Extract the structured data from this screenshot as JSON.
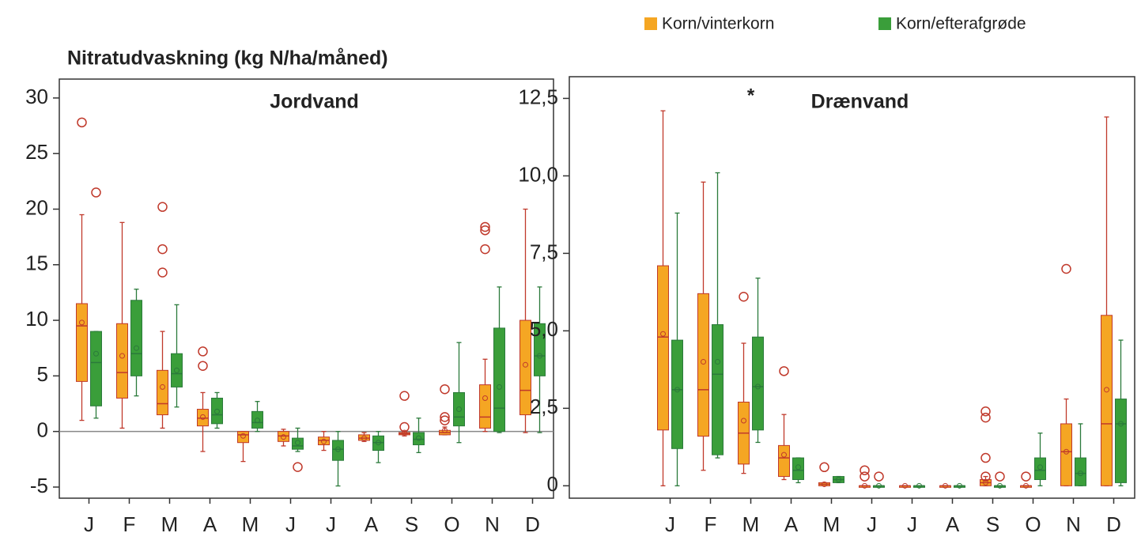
{
  "chart_data": [
    {
      "type": "box",
      "ylabel": "Nitratudvaskning (kg N/ha/måned)",
      "title": "Jordvand",
      "categories": [
        "J",
        "F",
        "M",
        "A",
        "M",
        "J",
        "J",
        "A",
        "S",
        "O",
        "N",
        "D"
      ],
      "ylim": [
        -6,
        31.7
      ],
      "yticks": [
        -5,
        0,
        5,
        10,
        15,
        20,
        25,
        30
      ],
      "zero_line": true,
      "series": [
        {
          "color": "#f5a623",
          "edgecolor": "#c0392b",
          "min": [
            1,
            0.3,
            0.3,
            -1.8,
            -2.7,
            -1.3,
            -1.7,
            -0.9,
            -0.4,
            -0.3,
            0,
            -0.1
          ],
          "q1": [
            4.5,
            3,
            1.5,
            0.5,
            -1,
            -0.9,
            -1.2,
            -0.8,
            -0.3,
            -0.3,
            0.3,
            1.5
          ],
          "median": [
            9.5,
            5.3,
            2.5,
            1.2,
            -0.3,
            -0.4,
            -0.8,
            -0.6,
            -0.2,
            -0.1,
            1.3,
            3.7
          ],
          "q3": [
            11.5,
            9.7,
            5.5,
            2,
            0,
            0,
            -0.5,
            -0.3,
            -0.1,
            0.1,
            4.2,
            10
          ],
          "max": [
            19.5,
            18.8,
            9,
            3.5,
            0,
            0.2,
            0,
            -0.1,
            0,
            0.4,
            6.5,
            20
          ],
          "mean": [
            9.8,
            6.8,
            4,
            1.3,
            -0.4,
            -0.5,
            -0.9,
            -0.6,
            -0.1,
            0.1,
            3,
            6
          ],
          "outliers": [
            [
              27.8
            ],
            [],
            [
              14.3,
              16.4,
              20.2
            ],
            [
              5.9,
              7.2
            ],
            [],
            [],
            [],
            [],
            [
              0.4,
              3.2
            ],
            [
              1,
              1.3,
              3.8
            ],
            [
              16.4,
              18.1,
              18.4
            ],
            []
          ]
        },
        {
          "color": "#3a9e3a",
          "edgecolor": "#2b7a3b",
          "min": [
            1.2,
            3.2,
            2.2,
            0.3,
            0,
            -1.8,
            -4.9,
            -2.8,
            -1.9,
            -1,
            -0.1,
            -0.1
          ],
          "q1": [
            2.3,
            5,
            4,
            0.7,
            0.3,
            -1.6,
            -2.6,
            -1.7,
            -1.2,
            0.5,
            0,
            5
          ],
          "median": [
            6.2,
            7,
            5.2,
            1.5,
            0.8,
            -1.3,
            -1.6,
            -1,
            -0.7,
            1.3,
            2.1,
            6.8
          ],
          "q3": [
            9,
            11.8,
            7,
            3,
            1.8,
            -0.6,
            -0.8,
            -0.4,
            -0.1,
            3.5,
            9.3,
            9.7
          ],
          "max": [
            9,
            12.8,
            11.4,
            3.5,
            2.7,
            0.3,
            0,
            0,
            1.2,
            8,
            13,
            13
          ],
          "mean": [
            7,
            7.5,
            5.5,
            1.8,
            1,
            -1,
            -1.6,
            -1,
            -0.6,
            2,
            4,
            6.8
          ],
          "outliers": [
            [
              21.5
            ],
            [],
            [],
            [],
            [],
            [
              -3.2
            ],
            [],
            [],
            [],
            [],
            [],
            []
          ]
        }
      ]
    },
    {
      "type": "box",
      "title": "Drænvand",
      "annotation": "*",
      "categories": [
        "J",
        "F",
        "M",
        "A",
        "M",
        "J",
        "J",
        "A",
        "S",
        "O",
        "N",
        "D"
      ],
      "ylim": [
        -0.4,
        13.2
      ],
      "yticks": [
        0,
        {
          "value": 2.5,
          "label": "2,5"
        },
        {
          "value": 5,
          "label": "5,0"
        },
        {
          "value": 7.5,
          "label": "7,5"
        },
        {
          "value": 10,
          "label": "10,0"
        },
        {
          "value": 12.5,
          "label": "12,5"
        }
      ],
      "series": [
        {
          "name": "Korn/vinterkorn",
          "color": "#f5a623",
          "edgecolor": "#c0392b",
          "min": [
            0,
            0.5,
            0.4,
            0.2,
            0,
            0,
            0,
            0,
            0,
            0,
            0,
            0
          ],
          "q1": [
            1.8,
            1.6,
            0.7,
            0.3,
            0,
            0,
            0,
            0,
            0,
            0,
            0,
            0
          ],
          "median": [
            4.8,
            3.1,
            1.7,
            0.9,
            0.05,
            0,
            0,
            0,
            0.1,
            0,
            1.1,
            2
          ],
          "q3": [
            7.1,
            6.2,
            2.7,
            1.3,
            0.1,
            0,
            0,
            0,
            0.2,
            0,
            2,
            5.5
          ],
          "max": [
            12.1,
            9.8,
            4.6,
            2.3,
            0.1,
            0,
            0,
            0,
            0.3,
            0,
            2.8,
            11.9
          ],
          "mean": [
            4.9,
            4,
            2.1,
            1,
            0.05,
            0,
            0,
            0,
            0.1,
            0,
            1.1,
            3.1
          ],
          "outliers": [
            [],
            [],
            [
              6.1
            ],
            [
              3.7
            ],
            [
              0.6
            ],
            [
              0.3,
              0.5
            ],
            [],
            [],
            [
              0.3,
              0.9,
              2.2,
              2.4
            ],
            [
              0.3
            ],
            [
              7
            ],
            []
          ]
        },
        {
          "name": "Korn/efterafgrøde",
          "color": "#3a9e3a",
          "edgecolor": "#2b7a3b",
          "min": [
            0,
            0.9,
            1.4,
            0.1,
            0.1,
            0,
            0,
            0,
            0,
            0,
            0,
            0
          ],
          "q1": [
            1.2,
            1,
            1.8,
            0.2,
            0.1,
            0,
            0,
            0,
            0,
            0.2,
            0,
            0.1
          ],
          "median": [
            3.1,
            3.6,
            3.2,
            0.5,
            0.2,
            0,
            0,
            0,
            0,
            0.5,
            0.4,
            2
          ],
          "q3": [
            4.7,
            5.2,
            4.8,
            0.9,
            0.3,
            0,
            0,
            0,
            0,
            0.9,
            0.9,
            2.8
          ],
          "max": [
            8.8,
            10.1,
            6.7,
            0.9,
            0.3,
            0,
            0,
            0,
            0,
            1.7,
            2,
            4.7
          ],
          "mean": [
            3.1,
            4,
            3.2,
            0.6,
            0.2,
            0,
            0,
            0,
            0,
            0.6,
            0.4,
            2
          ],
          "outliers": [
            [],
            [],
            [],
            [],
            [],
            [
              0.3
            ],
            [],
            [],
            [
              0.3
            ],
            [],
            [],
            []
          ]
        }
      ]
    }
  ]
}
